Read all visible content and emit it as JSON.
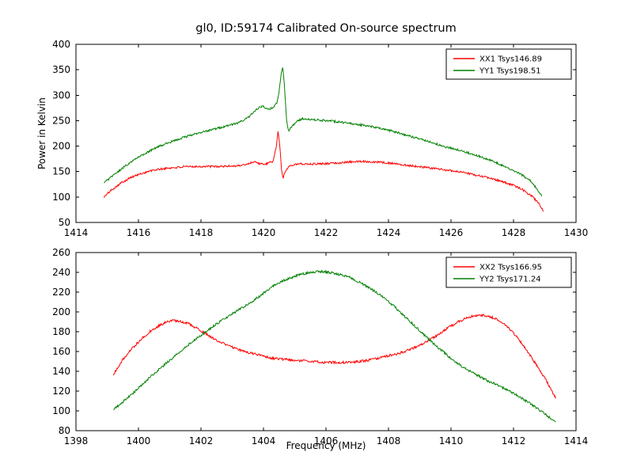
{
  "figure": {
    "background": "#ffffff"
  },
  "chart_data": [
    {
      "type": "line",
      "title": "gl0, ID:59174 Calibrated On-source spectrum",
      "xlabel": "",
      "ylabel": "Power in Kelvin",
      "xlim": [
        1414,
        1430
      ],
      "ylim": [
        50,
        400
      ],
      "xticks": [
        1414,
        1416,
        1418,
        1420,
        1422,
        1424,
        1426,
        1428,
        1430
      ],
      "yticks": [
        50,
        100,
        150,
        200,
        250,
        300,
        350,
        400
      ],
      "grid": false,
      "legend_position": "upper right",
      "series": [
        {
          "name": "XX1 Tsys146.89",
          "color": "#ff0000",
          "noise": 2.0,
          "points": [
            [
              1414.9,
              100
            ],
            [
              1415.1,
              112
            ],
            [
              1415.4,
              126
            ],
            [
              1415.7,
              137
            ],
            [
              1416.0,
              144
            ],
            [
              1416.3,
              150
            ],
            [
              1416.6,
              154
            ],
            [
              1417.0,
              157
            ],
            [
              1417.4,
              159
            ],
            [
              1417.8,
              160
            ],
            [
              1418.2,
              160
            ],
            [
              1418.6,
              160
            ],
            [
              1419.0,
              161
            ],
            [
              1419.3,
              162
            ],
            [
              1419.55,
              166
            ],
            [
              1419.7,
              170
            ],
            [
              1419.85,
              166
            ],
            [
              1420.0,
              164
            ],
            [
              1420.15,
              166
            ],
            [
              1420.3,
              170
            ],
            [
              1420.4,
              195
            ],
            [
              1420.47,
              230
            ],
            [
              1420.53,
              195
            ],
            [
              1420.58,
              152
            ],
            [
              1420.63,
              138
            ],
            [
              1420.7,
              150
            ],
            [
              1420.8,
              160
            ],
            [
              1420.95,
              164
            ],
            [
              1421.2,
              165
            ],
            [
              1421.6,
              165
            ],
            [
              1422.0,
              166
            ],
            [
              1422.4,
              167
            ],
            [
              1422.8,
              169
            ],
            [
              1423.2,
              170
            ],
            [
              1423.6,
              169
            ],
            [
              1424.0,
              167
            ],
            [
              1424.4,
              164
            ],
            [
              1424.8,
              161
            ],
            [
              1425.2,
              158
            ],
            [
              1425.6,
              155
            ],
            [
              1426.0,
              152
            ],
            [
              1426.4,
              148
            ],
            [
              1426.8,
              143
            ],
            [
              1427.2,
              138
            ],
            [
              1427.6,
              131
            ],
            [
              1428.0,
              123
            ],
            [
              1428.3,
              114
            ],
            [
              1428.6,
              101
            ],
            [
              1428.8,
              88
            ],
            [
              1428.95,
              72
            ]
          ]
        },
        {
          "name": "YY1 Tsys198.51",
          "color": "#008000",
          "noise": 2.0,
          "points": [
            [
              1414.9,
              128
            ],
            [
              1415.2,
              143
            ],
            [
              1415.6,
              162
            ],
            [
              1416.0,
              178
            ],
            [
              1416.4,
              192
            ],
            [
              1416.8,
              203
            ],
            [
              1417.2,
              212
            ],
            [
              1417.6,
              220
            ],
            [
              1418.0,
              227
            ],
            [
              1418.4,
              233
            ],
            [
              1418.8,
              239
            ],
            [
              1419.2,
              246
            ],
            [
              1419.5,
              255
            ],
            [
              1419.7,
              268
            ],
            [
              1419.85,
              276
            ],
            [
              1420.0,
              278
            ],
            [
              1420.15,
              272
            ],
            [
              1420.3,
              276
            ],
            [
              1420.42,
              284
            ],
            [
              1420.5,
              308
            ],
            [
              1420.57,
              345
            ],
            [
              1420.62,
              355
            ],
            [
              1420.68,
              310
            ],
            [
              1420.74,
              250
            ],
            [
              1420.8,
              230
            ],
            [
              1420.9,
              238
            ],
            [
              1421.05,
              248
            ],
            [
              1421.25,
              254
            ],
            [
              1421.5,
              253
            ],
            [
              1421.8,
              251
            ],
            [
              1422.2,
              249
            ],
            [
              1422.6,
              246
            ],
            [
              1423.0,
              243
            ],
            [
              1423.4,
              239
            ],
            [
              1423.8,
              234
            ],
            [
              1424.2,
              228
            ],
            [
              1424.6,
              221
            ],
            [
              1425.0,
              214
            ],
            [
              1425.4,
              207
            ],
            [
              1425.8,
              199
            ],
            [
              1426.2,
              193
            ],
            [
              1426.6,
              186
            ],
            [
              1427.0,
              178
            ],
            [
              1427.4,
              169
            ],
            [
              1427.8,
              158
            ],
            [
              1428.2,
              146
            ],
            [
              1428.5,
              134
            ],
            [
              1428.7,
              120
            ],
            [
              1428.9,
              103
            ]
          ]
        }
      ]
    },
    {
      "type": "line",
      "title": "",
      "xlabel": "Frequency (MHz)",
      "ylabel": "",
      "xlim": [
        1398,
        1414
      ],
      "ylim": [
        80,
        260
      ],
      "xticks": [
        1398,
        1400,
        1402,
        1404,
        1406,
        1408,
        1410,
        1412,
        1414
      ],
      "yticks": [
        80,
        100,
        120,
        140,
        160,
        180,
        200,
        220,
        240,
        260
      ],
      "grid": false,
      "legend_position": "upper right",
      "series": [
        {
          "name": "XX2 Tsys166.95",
          "color": "#ff0000",
          "noise": 1.2,
          "points": [
            [
              1399.2,
              137
            ],
            [
              1399.5,
              152
            ],
            [
              1399.8,
              163
            ],
            [
              1400.1,
              173
            ],
            [
              1400.4,
              181
            ],
            [
              1400.7,
              187
            ],
            [
              1401.0,
              191
            ],
            [
              1401.3,
              191
            ],
            [
              1401.6,
              188
            ],
            [
              1401.9,
              183
            ],
            [
              1402.2,
              177
            ],
            [
              1402.5,
              171
            ],
            [
              1402.8,
              167
            ],
            [
              1403.1,
              163
            ],
            [
              1403.5,
              159
            ],
            [
              1403.9,
              156
            ],
            [
              1404.3,
              153
            ],
            [
              1404.7,
              152
            ],
            [
              1405.1,
              151
            ],
            [
              1405.5,
              150
            ],
            [
              1405.9,
              149
            ],
            [
              1406.3,
              149
            ],
            [
              1406.7,
              149
            ],
            [
              1407.1,
              150
            ],
            [
              1407.5,
              152
            ],
            [
              1407.9,
              155
            ],
            [
              1408.3,
              158
            ],
            [
              1408.7,
              162
            ],
            [
              1409.1,
              168
            ],
            [
              1409.5,
              175
            ],
            [
              1409.9,
              184
            ],
            [
              1410.3,
              191
            ],
            [
              1410.6,
              195
            ],
            [
              1410.9,
              197
            ],
            [
              1411.2,
              196
            ],
            [
              1411.5,
              192
            ],
            [
              1411.8,
              185
            ],
            [
              1412.1,
              175
            ],
            [
              1412.4,
              162
            ],
            [
              1412.7,
              148
            ],
            [
              1413.0,
              133
            ],
            [
              1413.2,
              122
            ],
            [
              1413.35,
              113
            ]
          ]
        },
        {
          "name": "YY2 Tsys171.24",
          "color": "#008000",
          "noise": 1.2,
          "points": [
            [
              1399.2,
              101
            ],
            [
              1399.5,
              109
            ],
            [
              1399.8,
              117
            ],
            [
              1400.1,
              126
            ],
            [
              1400.4,
              135
            ],
            [
              1400.7,
              143
            ],
            [
              1401.0,
              151
            ],
            [
              1401.3,
              159
            ],
            [
              1401.6,
              167
            ],
            [
              1401.9,
              174
            ],
            [
              1402.2,
              181
            ],
            [
              1402.5,
              188
            ],
            [
              1402.8,
              194
            ],
            [
              1403.1,
              200
            ],
            [
              1403.4,
              206
            ],
            [
              1403.7,
              212
            ],
            [
              1404.0,
              219
            ],
            [
              1404.3,
              226
            ],
            [
              1404.6,
              231
            ],
            [
              1404.9,
              235
            ],
            [
              1405.2,
              238
            ],
            [
              1405.5,
              240
            ],
            [
              1405.8,
              241
            ],
            [
              1406.1,
              240
            ],
            [
              1406.4,
              238
            ],
            [
              1406.7,
              236
            ],
            [
              1407.0,
              231
            ],
            [
              1407.3,
              226
            ],
            [
              1407.6,
              220
            ],
            [
              1407.9,
              213
            ],
            [
              1408.2,
              205
            ],
            [
              1408.5,
              196
            ],
            [
              1408.8,
              187
            ],
            [
              1409.1,
              178
            ],
            [
              1409.4,
              169
            ],
            [
              1409.7,
              161
            ],
            [
              1410.0,
              153
            ],
            [
              1410.3,
              146
            ],
            [
              1410.6,
              140
            ],
            [
              1410.9,
              135
            ],
            [
              1411.2,
              130
            ],
            [
              1411.5,
              126
            ],
            [
              1411.8,
              121
            ],
            [
              1412.1,
              116
            ],
            [
              1412.4,
              110
            ],
            [
              1412.7,
              104
            ],
            [
              1413.0,
              97
            ],
            [
              1413.2,
              92
            ],
            [
              1413.35,
              88
            ]
          ]
        }
      ]
    }
  ]
}
